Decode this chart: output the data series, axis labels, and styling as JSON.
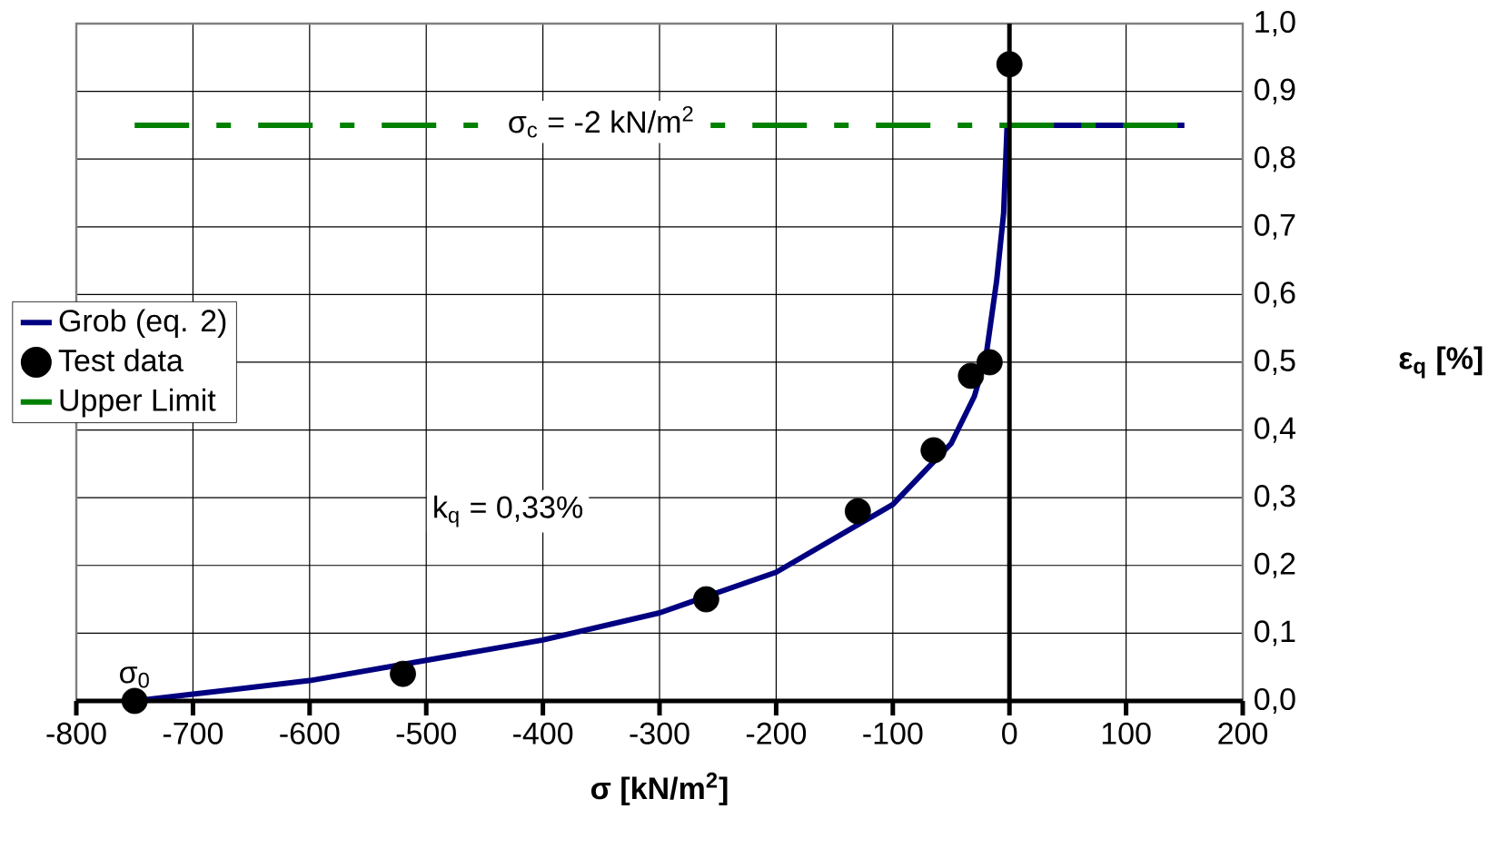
{
  "chart_data": {
    "type": "line",
    "xlabel": "**σ [kN/m$^{2}$]**",
    "ylabel": "**ε$_{q}$ [%]**",
    "xlim": [
      -800,
      200
    ],
    "ylim": [
      0,
      1
    ],
    "xticks": [
      -800,
      -700,
      -600,
      -500,
      -400,
      -300,
      -200,
      -100,
      0,
      100,
      200
    ],
    "yticks": [
      {
        "value": 0,
        "label": "0,0"
      },
      {
        "value": 0.1,
        "label": "0,1"
      },
      {
        "value": 0.2,
        "label": "0,2"
      },
      {
        "value": 0.3,
        "label": "0,3"
      },
      {
        "value": 0.4,
        "label": "0,4"
      },
      {
        "value": 0.5,
        "label": "0,5"
      },
      {
        "value": 0.6,
        "label": "0,6"
      },
      {
        "value": 0.7,
        "label": "0,7"
      },
      {
        "value": 0.8,
        "label": "0,8"
      },
      {
        "value": 0.9,
        "label": "0,9"
      },
      {
        "value": 1,
        "label": "1,0"
      }
    ],
    "grid": true,
    "legend": "left",
    "series": [
      {
        "name": "Grob (eq. 2)",
        "color": "#000080",
        "x": [
          -750,
          -700,
          -600,
          -500,
          -400,
          -300,
          -200,
          -100,
          -50,
          -30,
          -20,
          -11,
          -5,
          -2,
          0,
          150
        ],
        "values": [
          0,
          0.01,
          0.03,
          0.06,
          0.09,
          0.13,
          0.19,
          0.29,
          0.38,
          0.45,
          0.51,
          0.62,
          0.72,
          0.85,
          0.85,
          0.85
        ]
      },
      {
        "name": "Test data",
        "type": "scatter",
        "color": "#000000",
        "x": [
          -750,
          -520,
          -260,
          -130,
          -65,
          -33,
          -17,
          0
        ],
        "values": [
          0,
          0.04,
          0.15,
          0.28,
          0.37,
          0.48,
          0.5,
          0.94
        ]
      },
      {
        "name": "Upper Limit",
        "color": "#008000",
        "line_style": "dashed",
        "x": [
          -750,
          150
        ],
        "values": [
          0.85,
          0.85
        ]
      }
    ],
    "annotations": [
      {
        "text": "σ$_{c}$ = -2 kN/m$^{2}$",
        "x": -350,
        "y": 0.85
      },
      "k$_{q}$ = 0,33%",
      {
        "text": "σ$_{0}$",
        "x": -750,
        "y": 0
      }
    ]
  }
}
